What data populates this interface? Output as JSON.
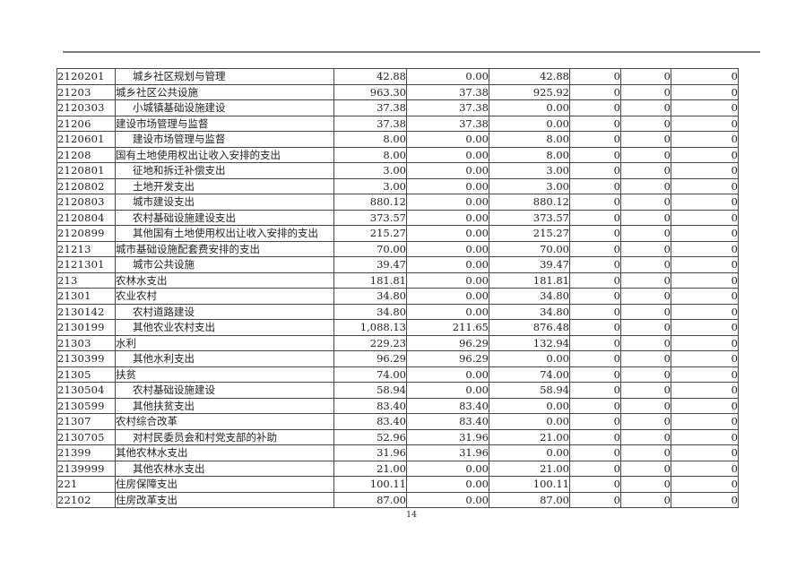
{
  "page": {
    "number": "14"
  },
  "table": {
    "rows": [
      {
        "code": "2120201",
        "name": "城乡社区规划与管理",
        "indent": 1,
        "values": [
          "42.88",
          "0.00",
          "42.88",
          "0",
          "0",
          "0"
        ]
      },
      {
        "code": "21203",
        "name": "城乡社区公共设施",
        "indent": 0,
        "values": [
          "963.30",
          "37.38",
          "925.92",
          "0",
          "0",
          "0"
        ]
      },
      {
        "code": "2120303",
        "name": "小城镇基础设施建设",
        "indent": 1,
        "values": [
          "37.38",
          "37.38",
          "0.00",
          "0",
          "0",
          "0"
        ]
      },
      {
        "code": "21206",
        "name": "建设市场管理与监督",
        "indent": 0,
        "values": [
          "37.38",
          "37.38",
          "0.00",
          "0",
          "0",
          "0"
        ]
      },
      {
        "code": "2120601",
        "name": "建设市场管理与监督",
        "indent": 1,
        "values": [
          "8.00",
          "0.00",
          "8.00",
          "0",
          "0",
          "0"
        ]
      },
      {
        "code": "21208",
        "name": "国有土地使用权出让收入安排的支出",
        "indent": 0,
        "values": [
          "8.00",
          "0.00",
          "8.00",
          "0",
          "0",
          "0"
        ]
      },
      {
        "code": "2120801",
        "name": "征地和拆迁补偿支出",
        "indent": 1,
        "values": [
          "3.00",
          "0.00",
          "3.00",
          "0",
          "0",
          "0"
        ]
      },
      {
        "code": "2120802",
        "name": "土地开发支出",
        "indent": 1,
        "values": [
          "3.00",
          "0.00",
          "3.00",
          "0",
          "0",
          "0"
        ]
      },
      {
        "code": "2120803",
        "name": "城市建设支出",
        "indent": 1,
        "values": [
          "880.12",
          "0.00",
          "880.12",
          "0",
          "0",
          "0"
        ]
      },
      {
        "code": "2120804",
        "name": "农村基础设施建设支出",
        "indent": 1,
        "values": [
          "373.57",
          "0.00",
          "373.57",
          "0",
          "0",
          "0"
        ]
      },
      {
        "code": "2120899",
        "name": "其他国有土地使用权出让收入安排的支出",
        "indent": 1,
        "values": [
          "215.27",
          "0.00",
          "215.27",
          "0",
          "0",
          "0"
        ]
      },
      {
        "code": "21213",
        "name": "城市基础设施配套费安排的支出",
        "indent": 0,
        "values": [
          "70.00",
          "0.00",
          "70.00",
          "0",
          "0",
          "0"
        ]
      },
      {
        "code": "2121301",
        "name": "城市公共设施",
        "indent": 1,
        "values": [
          "39.47",
          "0.00",
          "39.47",
          "0",
          "0",
          "0"
        ]
      },
      {
        "code": "213",
        "name": "农林水支出",
        "indent": 0,
        "values": [
          "181.81",
          "0.00",
          "181.81",
          "0",
          "0",
          "0"
        ]
      },
      {
        "code": "21301",
        "name": "农业农村",
        "indent": 0,
        "values": [
          "34.80",
          "0.00",
          "34.80",
          "0",
          "0",
          "0"
        ]
      },
      {
        "code": "2130142",
        "name": "农村道路建设",
        "indent": 1,
        "values": [
          "34.80",
          "0.00",
          "34.80",
          "0",
          "0",
          "0"
        ]
      },
      {
        "code": "2130199",
        "name": "其他农业农村支出",
        "indent": 1,
        "values": [
          "1,088.13",
          "211.65",
          "876.48",
          "0",
          "0",
          "0"
        ]
      },
      {
        "code": "21303",
        "name": "水利",
        "indent": 0,
        "values": [
          "229.23",
          "96.29",
          "132.94",
          "0",
          "0",
          "0"
        ]
      },
      {
        "code": "2130399",
        "name": "其他水利支出",
        "indent": 1,
        "values": [
          "96.29",
          "96.29",
          "0.00",
          "0",
          "0",
          "0"
        ]
      },
      {
        "code": "21305",
        "name": "扶贫",
        "indent": 0,
        "values": [
          "74.00",
          "0.00",
          "74.00",
          "0",
          "0",
          "0"
        ]
      },
      {
        "code": "2130504",
        "name": "农村基础设施建设",
        "indent": 1,
        "values": [
          "58.94",
          "0.00",
          "58.94",
          "0",
          "0",
          "0"
        ]
      },
      {
        "code": "2130599",
        "name": "其他扶贫支出",
        "indent": 1,
        "values": [
          "83.40",
          "83.40",
          "0.00",
          "0",
          "0",
          "0"
        ]
      },
      {
        "code": "21307",
        "name": "农村综合改革",
        "indent": 0,
        "values": [
          "83.40",
          "83.40",
          "0.00",
          "0",
          "0",
          "0"
        ]
      },
      {
        "code": "2130705",
        "name": "对村民委员会和村党支部的补助",
        "indent": 1,
        "values": [
          "52.96",
          "31.96",
          "21.00",
          "0",
          "0",
          "0"
        ]
      },
      {
        "code": "21399",
        "name": "其他农林水支出",
        "indent": 0,
        "values": [
          "31.96",
          "31.96",
          "0.00",
          "0",
          "0",
          "0"
        ]
      },
      {
        "code": "2139999",
        "name": "其他农林水支出",
        "indent": 1,
        "values": [
          "21.00",
          "0.00",
          "21.00",
          "0",
          "0",
          "0"
        ]
      },
      {
        "code": "221",
        "name": "住房保障支出",
        "indent": 0,
        "values": [
          "100.11",
          "0.00",
          "100.11",
          "0",
          "0",
          "0"
        ]
      },
      {
        "code": "22102",
        "name": "住房改革支出",
        "indent": 0,
        "values": [
          "87.00",
          "0.00",
          "87.00",
          "0",
          "0",
          "0"
        ]
      }
    ]
  }
}
